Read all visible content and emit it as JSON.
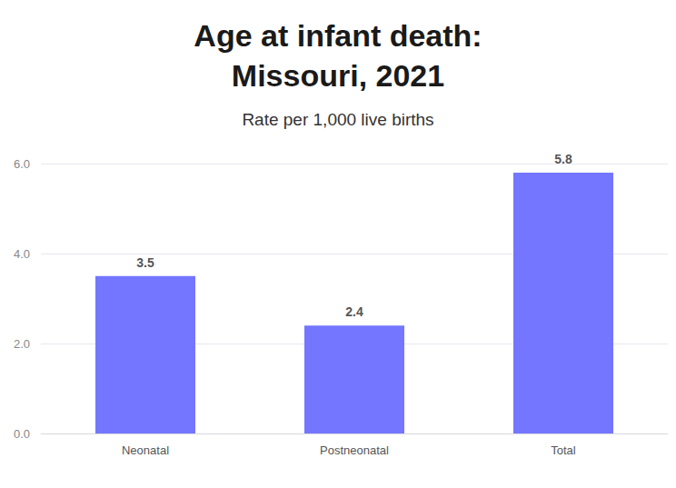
{
  "chart_data": {
    "type": "bar",
    "title": "Age at infant death:\nMissouri, 2021",
    "subtitle": "Rate per 1,000 live births",
    "categories": [
      "Neonatal",
      "Postneonatal",
      "Total"
    ],
    "values": [
      3.5,
      2.4,
      5.8
    ],
    "color": "#7476ff",
    "ylim": [
      0,
      6
    ],
    "yticks": [
      {
        "value": 0,
        "label": "0.0"
      },
      {
        "value": 2,
        "label": "2.0"
      },
      {
        "value": 4,
        "label": "4.0"
      },
      {
        "value": 6,
        "label": "6.0"
      }
    ],
    "grid": true,
    "data_labels": true
  }
}
